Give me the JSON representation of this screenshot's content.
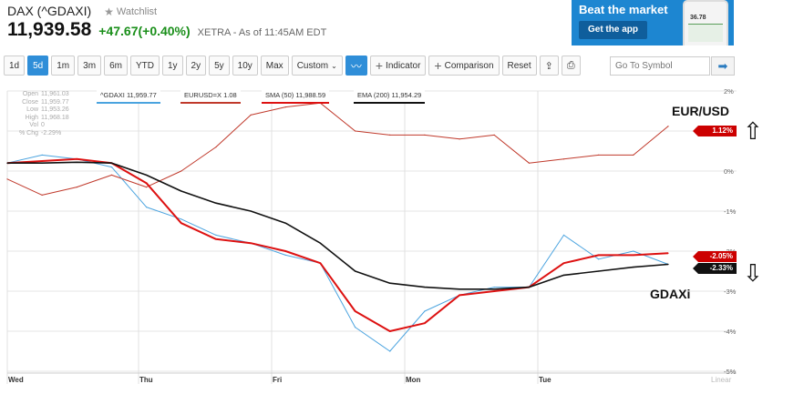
{
  "quote": {
    "title": "DAX (^GDAXI)",
    "watchlist_label": "Watchlist",
    "price": "11,939.58",
    "change": "+47.67(+0.40%)",
    "exchange_info": "XETRA - As of 11:45AM EDT"
  },
  "ad": {
    "headline": "Beat the market",
    "button_label": "Get the app",
    "phone_value": "36.78"
  },
  "toolbar": {
    "ranges": [
      "1d",
      "5d",
      "1m",
      "3m",
      "6m",
      "YTD",
      "1y",
      "2y",
      "5y",
      "10y",
      "Max"
    ],
    "active_range": "5d",
    "custom_label": "Custom",
    "indicator_label": "Indicator",
    "comparison_label": "Comparison",
    "reset_label": "Reset",
    "symbol_placeholder": "Go To Symbol"
  },
  "ohlc": {
    "open_label": "Open",
    "open": "11,961.03",
    "close_label": "Close",
    "close": "11,959.77",
    "low_label": "Low",
    "low": "11,953.26",
    "high_label": "High",
    "high": "11,968.18",
    "vol_label": "Vol",
    "vol": "0",
    "chg_label": "% Chg",
    "chg": "-2.29%"
  },
  "legend": {
    "gdaxi": "^GDAXI 11,959.77",
    "eurusd": "EURUSD=X 1.08",
    "sma": "SMA (50) 11,988.59",
    "ema": "EMA (200) 11,954.29"
  },
  "annotations": {
    "eurusd": "EUR/USD",
    "gdaxi": "GDAXi",
    "up_arrow": "⇧",
    "down_arrow": "⇩"
  },
  "badges": {
    "eurusd": "1.12%",
    "sma": "-2.05%",
    "gdaxi": "-2.33%"
  },
  "colors": {
    "gdaxi": "#4aa3df",
    "eurusd": "#c0392b",
    "sma": "#dd1111",
    "ema": "#111111",
    "badge_red": "#cc0000",
    "badge_black": "#111111"
  },
  "chart_data": {
    "type": "line",
    "x_label_ticks": [
      "Wed",
      "Thu",
      "Fri",
      "Mon",
      "Tue"
    ],
    "y_ticks": [
      "2%",
      "1%",
      "0%",
      "-1%",
      "-2%",
      "-3%",
      "-4%",
      "-5%"
    ],
    "ylim": [
      -5,
      2
    ],
    "scale_label": "Linear",
    "x": [
      "Wed",
      "Wed",
      "Wed",
      "Thu",
      "Thu",
      "Thu",
      "Fri",
      "Fri",
      "Fri",
      "Fri",
      "Mon",
      "Mon",
      "Mon",
      "Mon",
      "Tue",
      "Tue",
      "Tue",
      "Tue",
      "Tue",
      "Tue"
    ],
    "series": [
      {
        "name": "^GDAXI",
        "values": [
          0.2,
          0.4,
          0.3,
          0.1,
          -0.9,
          -1.2,
          -1.6,
          -1.8,
          -2.1,
          -2.3,
          -3.9,
          -4.5,
          -3.5,
          -3.1,
          -2.9,
          -2.9,
          -1.6,
          -2.2,
          -2.0,
          -2.33
        ]
      },
      {
        "name": "EURUSD=X",
        "values": [
          -0.2,
          -0.6,
          -0.4,
          -0.1,
          -0.4,
          0.0,
          0.6,
          1.4,
          1.6,
          1.7,
          1.0,
          0.9,
          0.9,
          0.8,
          0.9,
          0.2,
          0.3,
          0.4,
          0.4,
          1.12
        ]
      },
      {
        "name": "SMA (50)",
        "values": [
          0.2,
          0.25,
          0.3,
          0.2,
          -0.3,
          -1.3,
          -1.7,
          -1.8,
          -2.0,
          -2.3,
          -3.5,
          -4.0,
          -3.8,
          -3.1,
          -3.0,
          -2.9,
          -2.3,
          -2.1,
          -2.1,
          -2.05
        ]
      },
      {
        "name": "EMA (200)",
        "values": [
          0.2,
          0.2,
          0.22,
          0.2,
          -0.1,
          -0.5,
          -0.8,
          -1.0,
          -1.3,
          -1.8,
          -2.5,
          -2.8,
          -2.9,
          -2.95,
          -2.95,
          -2.9,
          -2.6,
          -2.5,
          -2.4,
          -2.33
        ]
      }
    ]
  }
}
